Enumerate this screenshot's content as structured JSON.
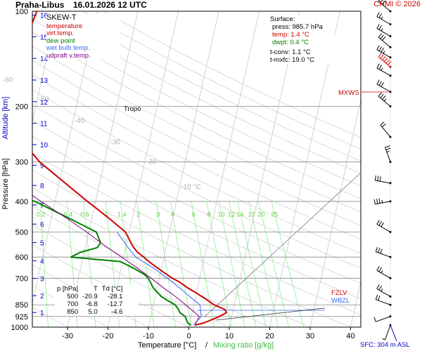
{
  "header": {
    "station": "Praha-Libus",
    "datetime": "16.01.2026 12 UTC",
    "copyright": "CHMI © 2026"
  },
  "legend": {
    "title": "SKEW-T",
    "items": [
      {
        "label": "temperature",
        "color": "#cc0000"
      },
      {
        "label": "virt.temp.",
        "color": "#cc0000"
      },
      {
        "label": "dew point",
        "color": "#008000"
      },
      {
        "label": "wet bulb temp.",
        "color": "#3366ff"
      },
      {
        "label": "udpraft v.temp.",
        "color": "#800080"
      }
    ]
  },
  "surface": {
    "heading": "Surface:",
    "press": "press: 985.7 hPa",
    "temp": "temp: 1.4 °C",
    "dwpt": "dwpt: 0.4 °C",
    "tconv": "t-conv: 1.1 °C",
    "tmxfc": "t-mxfc: 19.0 °C"
  },
  "table": {
    "headers": [
      "p [hPa]",
      "T",
      "Td [°C]"
    ],
    "rows": [
      [
        "500",
        "-20.9",
        "-28.1"
      ],
      [
        "700",
        "-6.8",
        "-12.7"
      ],
      [
        "850",
        "5.0",
        "-4.6"
      ]
    ]
  },
  "annotations": {
    "tropo": "Tropo",
    "mxws": "MXWS",
    "fzlv": "FZLV",
    "wbzl": "WBZL",
    "sfc": "SFC: 304 m ASL"
  },
  "axes": {
    "pressure_label": "Pressure [hPa]",
    "altitude_label": "Altitude [km]",
    "temp_label": "Temperature [°C]",
    "sep": "/",
    "mix_label": "Mixing ratio [g/kg]"
  },
  "colors": {
    "temperature": "#cc0000",
    "dewpoint": "#008000",
    "wetbulb": "#3366ff",
    "parcel": "#800080",
    "mixing": "#90ee90",
    "altitude": "#0000cc",
    "isotherm_label": "#b0b0b0"
  },
  "chart_data": {
    "type": "line",
    "skew": "skew-T log-p",
    "xlim": [
      -35,
      42
    ],
    "ylim": [
      1000,
      100
    ],
    "pressure_ticks": [
      100,
      200,
      300,
      400,
      500,
      600,
      700,
      850,
      925,
      1000
    ],
    "temperature_ticks": [
      -30,
      -20,
      -10,
      0,
      10,
      20,
      30,
      40
    ],
    "isotherm_labels": [
      "-80 °C",
      "-70",
      "-60",
      "-50",
      "-40",
      "-30",
      "-20",
      "-10 °C"
    ],
    "mixing_ratio_labels": [
      "0.2",
      "0.4",
      "0.6",
      "1",
      "1.4",
      "2",
      "3",
      "4",
      "6",
      "8",
      "10",
      "12",
      "14",
      "17",
      "20",
      "25"
    ],
    "altitude_ticks_km": [
      1,
      2,
      3,
      4,
      5,
      6,
      7,
      8,
      9,
      10,
      11,
      12,
      13,
      14,
      15,
      16
    ],
    "series": [
      {
        "name": "temperature",
        "p": [
          986,
          970,
          925,
          900,
          880,
          850,
          820,
          800,
          780,
          750,
          720,
          700,
          680,
          650,
          620,
          600,
          580,
          560,
          540,
          500,
          450,
          400,
          350,
          300,
          250,
          200,
          190,
          180,
          170,
          160,
          150,
          140,
          130,
          120,
          110,
          100
        ],
        "t": [
          1.4,
          3.5,
          7.0,
          8.5,
          8.0,
          5.0,
          3.0,
          1.5,
          0.0,
          -2.5,
          -4.8,
          -6.8,
          -8.5,
          -11.0,
          -13.5,
          -15.0,
          -16.8,
          -18.0,
          -19.0,
          -20.9,
          -26.0,
          -32.0,
          -38.5,
          -46.0,
          -52.5,
          -60.0,
          -60.8,
          -60.0,
          -58.5,
          -58.0,
          -57.5,
          -57.0,
          -56.5,
          -56.0,
          -55.5,
          -55.0
        ]
      },
      {
        "name": "dew point",
        "p": [
          986,
          970,
          925,
          900,
          880,
          850,
          820,
          800,
          780,
          750,
          720,
          700,
          680,
          650,
          620,
          600,
          580,
          560,
          540,
          500,
          450,
          400,
          350,
          300,
          250,
          200,
          190,
          180,
          170,
          160,
          150,
          140,
          130,
          120,
          110,
          100
        ],
        "t": [
          0.4,
          -0.5,
          -1.5,
          -3.0,
          -3.5,
          -4.6,
          -7.0,
          -8.5,
          -9.5,
          -11.0,
          -12.0,
          -12.7,
          -14.0,
          -17.0,
          -20.5,
          -33.0,
          -31.0,
          -27.0,
          -26.5,
          -28.1,
          -36.0,
          -45.0,
          -58.0,
          -50.0,
          -65.0,
          -71.0,
          -71.0,
          -66.0,
          -64.0,
          -68.0,
          -72.0,
          -74.0,
          -75.5,
          -76.0,
          -77.0,
          -78.0
        ]
      },
      {
        "name": "wet bulb temp.",
        "p": [
          986,
          925,
          850,
          800,
          750,
          700,
          650,
          600,
          550,
          500
        ],
        "t": [
          1.0,
          2.5,
          1.5,
          -1.5,
          -4.5,
          -8.0,
          -12.0,
          -17.0,
          -20.0,
          -23.0
        ]
      },
      {
        "name": "udpraft v.temp.",
        "p": [
          986,
          925,
          850,
          800,
          750,
          700,
          650,
          600,
          550,
          500,
          450,
          400,
          350,
          300,
          250,
          200,
          150,
          120,
          100
        ],
        "t": [
          1.4,
          2.0,
          -2.0,
          -5.0,
          -8.5,
          -12.0,
          -16.0,
          -20.5,
          -25.5,
          -30.5,
          -36.5,
          -43.5,
          -51.0,
          -59.0,
          -68.5,
          -80.0,
          -93.0,
          -102.0,
          -108.0
        ]
      }
    ],
    "wind_barbs": [
      {
        "p": 986,
        "dir_deg": 200,
        "speed_kt": 5
      },
      {
        "p": 925,
        "dir_deg": 250,
        "speed_kt": 10
      },
      {
        "p": 850,
        "dir_deg": 290,
        "speed_kt": 20
      },
      {
        "p": 800,
        "dir_deg": 300,
        "speed_kt": 25
      },
      {
        "p": 700,
        "dir_deg": 300,
        "speed_kt": 25
      },
      {
        "p": 600,
        "dir_deg": 290,
        "speed_kt": 30
      },
      {
        "p": 500,
        "dir_deg": 300,
        "speed_kt": 30
      },
      {
        "p": 400,
        "dir_deg": 260,
        "speed_kt": 35
      },
      {
        "p": 350,
        "dir_deg": 280,
        "speed_kt": 30
      },
      {
        "p": 300,
        "dir_deg": 340,
        "speed_kt": 25
      },
      {
        "p": 250,
        "dir_deg": 320,
        "speed_kt": 20
      },
      {
        "p": 200,
        "dir_deg": 310,
        "speed_kt": 35
      },
      {
        "p": 180,
        "dir_deg": 300,
        "speed_kt": 30
      },
      {
        "p": 160,
        "dir_deg": 300,
        "speed_kt": 25
      },
      {
        "p": 150,
        "dir_deg": 310,
        "speed_kt": 60
      },
      {
        "p": 140,
        "dir_deg": 300,
        "speed_kt": 35
      },
      {
        "p": 130,
        "dir_deg": 310,
        "speed_kt": 30
      },
      {
        "p": 120,
        "dir_deg": 300,
        "speed_kt": 25
      },
      {
        "p": 110,
        "dir_deg": 300,
        "speed_kt": 25
      },
      {
        "p": 100,
        "dir_deg": 310,
        "speed_kt": 30
      }
    ]
  }
}
